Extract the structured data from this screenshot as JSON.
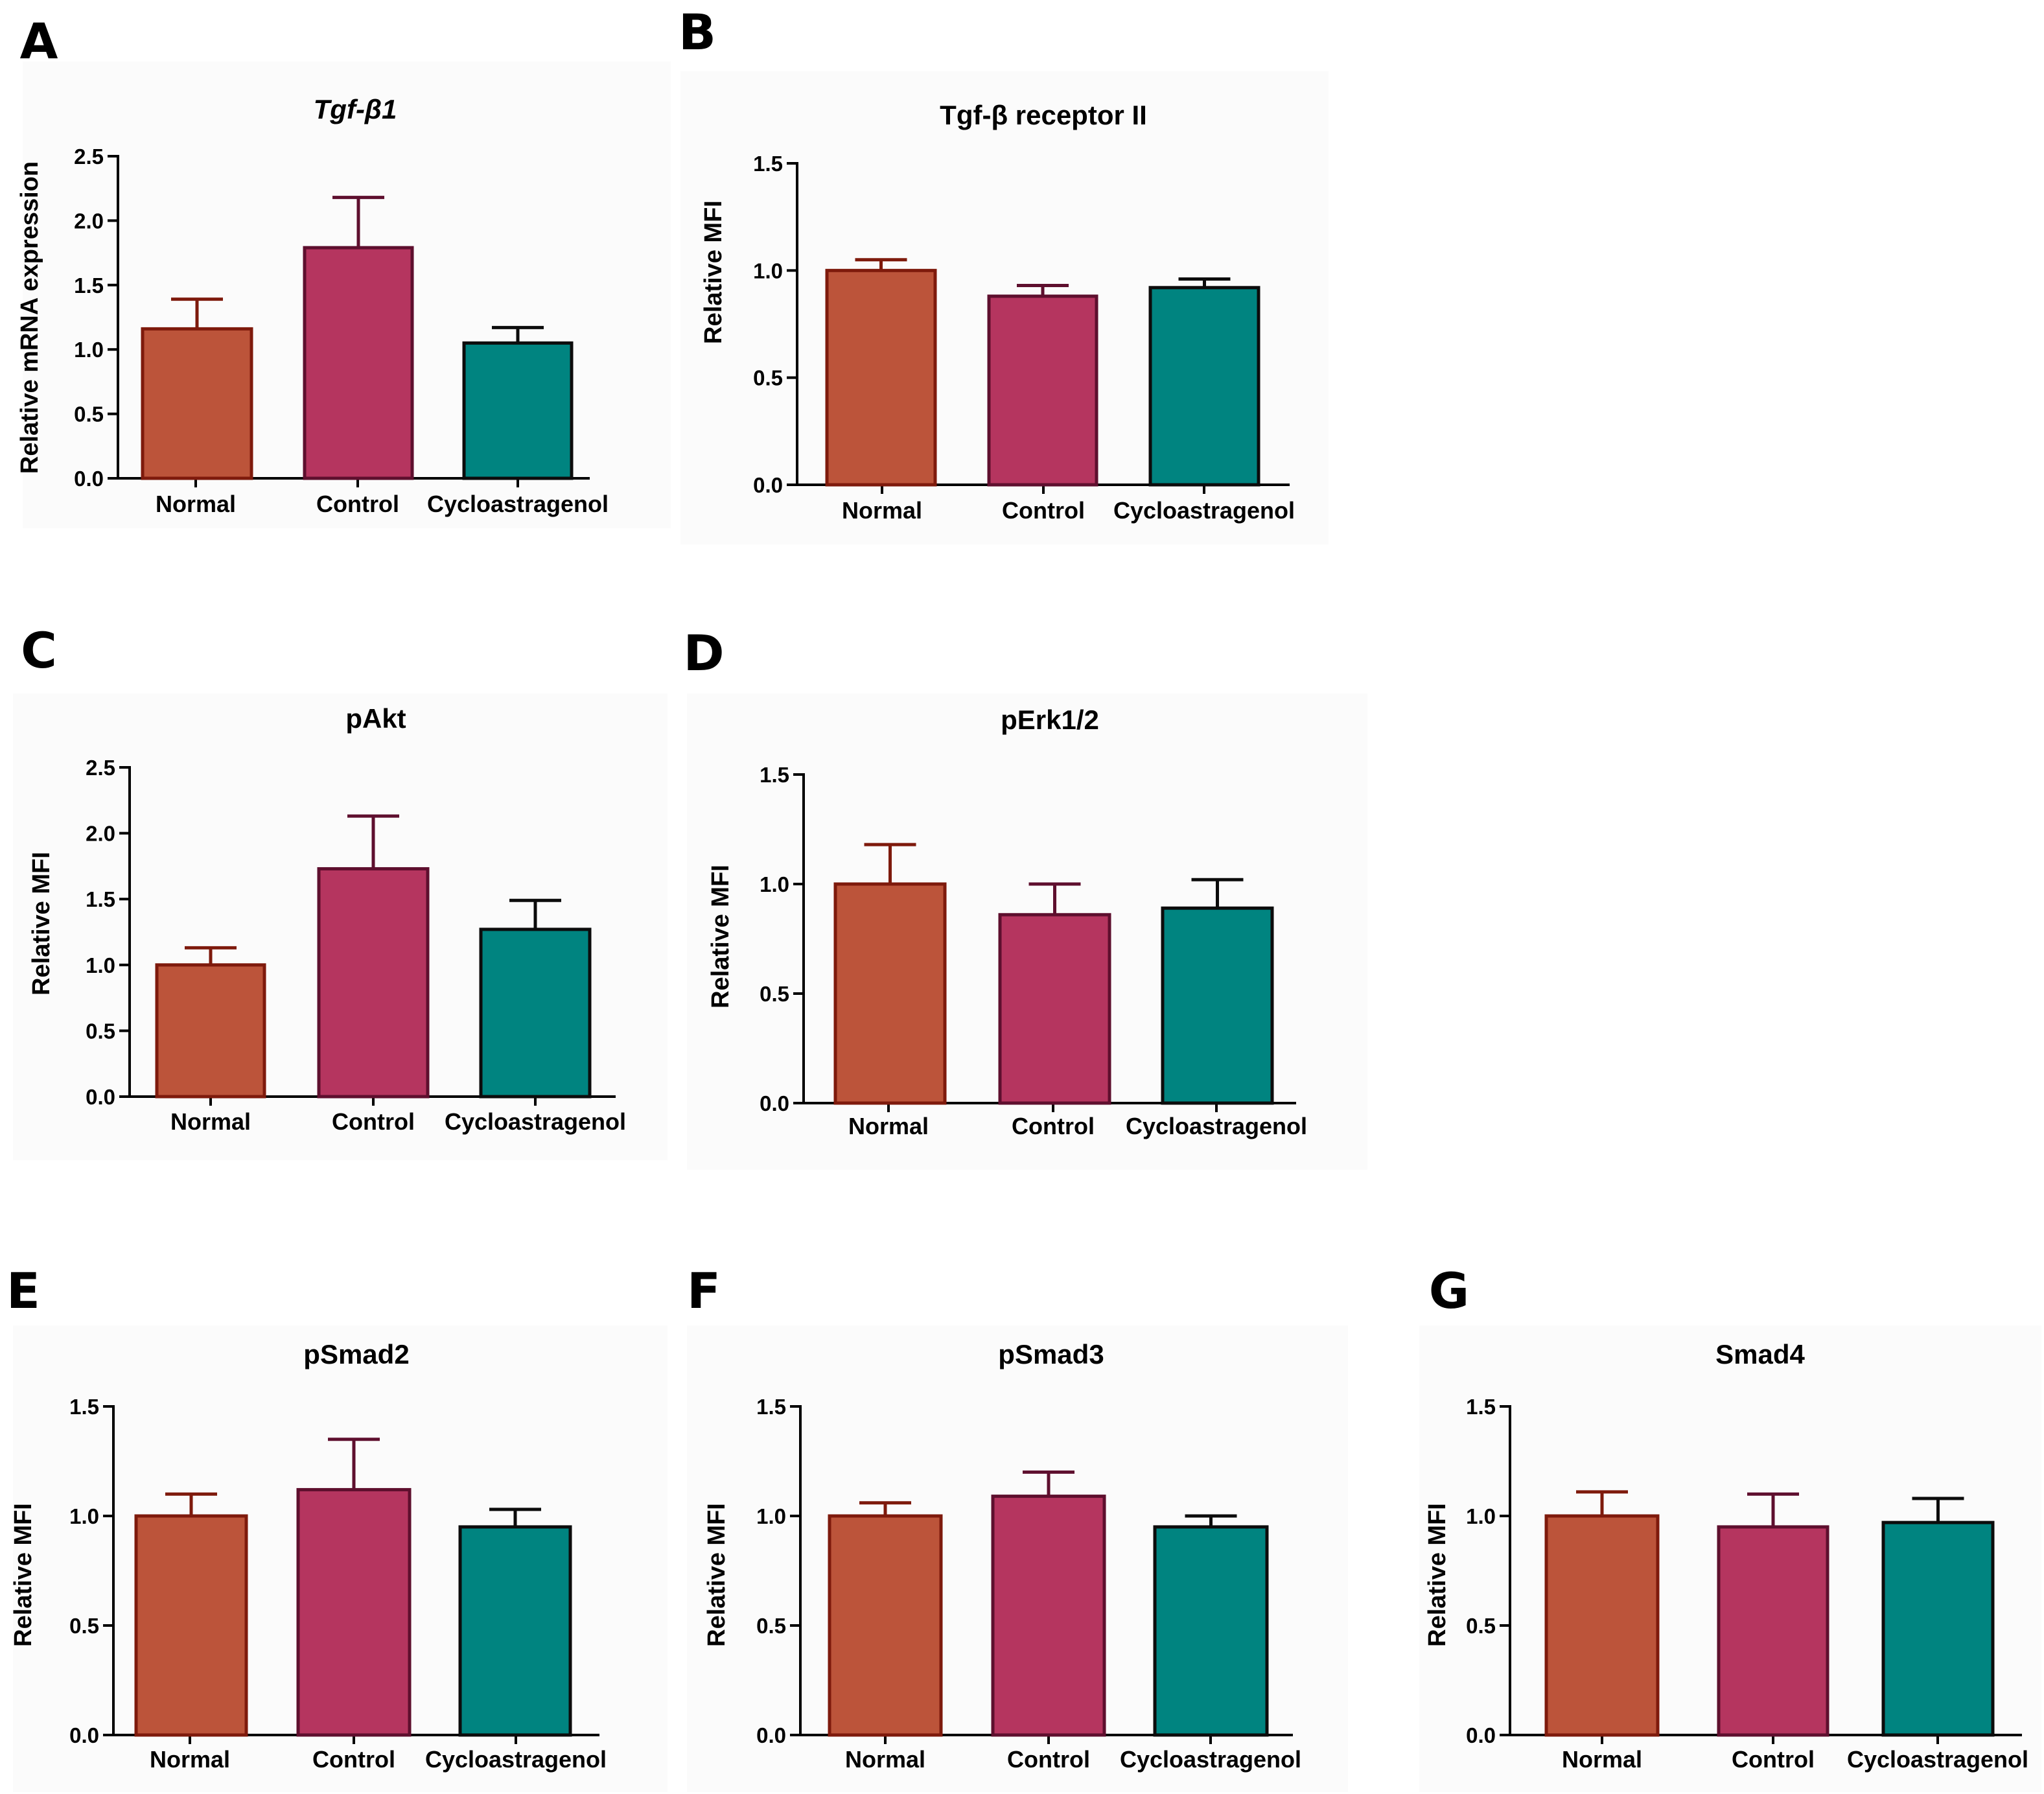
{
  "chart_data": [
    {
      "panel": "A",
      "type": "bar",
      "title": "Tgf-β1",
      "title_italic": true,
      "ylabel": "Relative mRNA expression",
      "xlabel": "",
      "ylim": [
        0,
        2.5
      ],
      "yticks": [
        "0.0",
        "0.5",
        "1.0",
        "1.5",
        "2.0",
        "2.5"
      ],
      "categories": [
        "Normal",
        "Control",
        "Cycloastragenol"
      ],
      "values": [
        1.16,
        1.79,
        1.05
      ],
      "errors": [
        0.23,
        0.39,
        0.12
      ]
    },
    {
      "panel": "B",
      "type": "bar",
      "title": "Tgf-β receptor II",
      "title_italic": false,
      "ylabel": "Relative MFI",
      "xlabel": "",
      "ylim": [
        0,
        1.5
      ],
      "yticks": [
        "0.0",
        "0.5",
        "1.0",
        "1.5"
      ],
      "categories": [
        "Normal",
        "Control",
        "Cycloastragenol"
      ],
      "values": [
        1.0,
        0.88,
        0.92
      ],
      "errors": [
        0.05,
        0.05,
        0.04
      ]
    },
    {
      "panel": "C",
      "type": "bar",
      "title": "pAkt",
      "title_italic": false,
      "ylabel": "Relative MFI",
      "xlabel": "",
      "ylim": [
        0,
        2.5
      ],
      "yticks": [
        "0.0",
        "0.5",
        "1.0",
        "1.5",
        "2.0",
        "2.5"
      ],
      "categories": [
        "Normal",
        "Control",
        "Cycloastragenol"
      ],
      "values": [
        1.0,
        1.73,
        1.27
      ],
      "errors": [
        0.13,
        0.4,
        0.22
      ]
    },
    {
      "panel": "D",
      "type": "bar",
      "title": "pErk1/2",
      "title_italic": false,
      "ylabel": "Relative MFI",
      "xlabel": "",
      "ylim": [
        0,
        1.5
      ],
      "yticks": [
        "0.0",
        "0.5",
        "1.0",
        "1.5"
      ],
      "categories": [
        "Normal",
        "Control",
        "Cycloastragenol"
      ],
      "values": [
        1.0,
        0.86,
        0.89
      ],
      "errors": [
        0.18,
        0.14,
        0.13
      ]
    },
    {
      "panel": "E",
      "type": "bar",
      "title": "pSmad2",
      "title_italic": false,
      "ylabel": "Relative MFI",
      "xlabel": "",
      "ylim": [
        0,
        1.5
      ],
      "yticks": [
        "0.0",
        "0.5",
        "1.0",
        "1.5"
      ],
      "categories": [
        "Normal",
        "Control",
        "Cycloastragenol"
      ],
      "values": [
        1.0,
        1.12,
        0.95
      ],
      "errors": [
        0.1,
        0.23,
        0.08
      ]
    },
    {
      "panel": "F",
      "type": "bar",
      "title": "pSmad3",
      "title_italic": false,
      "ylabel": "Relative MFI",
      "xlabel": "",
      "ylim": [
        0,
        1.5
      ],
      "yticks": [
        "0.0",
        "0.5",
        "1.0",
        "1.5"
      ],
      "categories": [
        "Normal",
        "Control",
        "Cycloastragenol"
      ],
      "values": [
        1.0,
        1.09,
        0.95
      ],
      "errors": [
        0.06,
        0.11,
        0.05
      ]
    },
    {
      "panel": "G",
      "type": "bar",
      "title": "Smad4",
      "title_italic": false,
      "ylabel": "Relative MFI",
      "xlabel": "",
      "ylim": [
        0,
        1.5
      ],
      "yticks": [
        "0.0",
        "0.5",
        "1.0",
        "1.5"
      ],
      "categories": [
        "Normal",
        "Control",
        "Cycloastragenol"
      ],
      "values": [
        1.0,
        0.95,
        0.97
      ],
      "errors": [
        0.11,
        0.15,
        0.11
      ]
    }
  ],
  "colors": {
    "fills": [
      "#bc543a",
      "#b5355f",
      "#008480"
    ],
    "strokes": [
      "#7e1a0c",
      "#5e0f2e",
      "#0c0c0c"
    ]
  }
}
